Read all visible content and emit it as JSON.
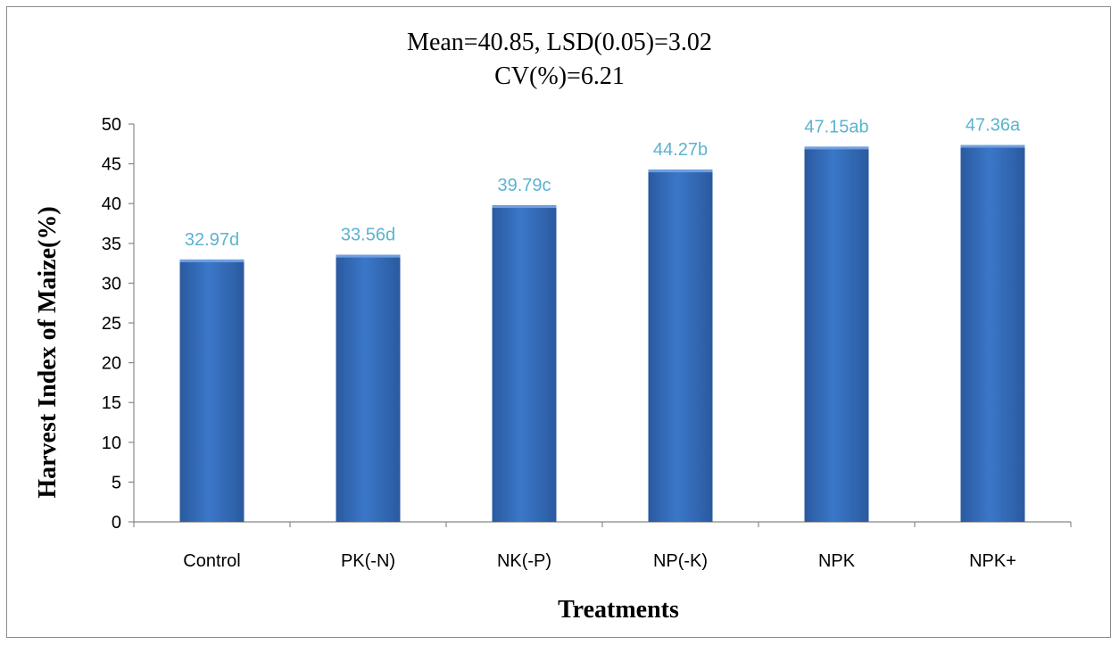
{
  "chart_data": {
    "type": "bar",
    "title": "Mean=40.85, LSD(0.05)=3.02",
    "subtitle": "CV(%)=6.21",
    "xlabel": "Treatments",
    "ylabel": "Harvest Index of Maize(%)",
    "categories": [
      "Control",
      "PK(-N)",
      "NK(-P)",
      "NP(-K)",
      "NPK",
      "NPK+"
    ],
    "values": [
      32.97,
      33.56,
      39.79,
      44.27,
      47.15,
      47.36
    ],
    "data_labels": [
      "32.97d",
      "33.56d",
      "39.79c",
      "44.27b",
      "47.15ab",
      "47.36a"
    ],
    "yticks": [
      "0",
      "5",
      "10",
      "15",
      "20",
      "25",
      "30",
      "35",
      "40",
      "45",
      "50"
    ],
    "ylim": [
      0,
      50
    ],
    "grid": false,
    "legend": "none",
    "colors": {
      "bar": "#3b77c8",
      "bar_dark": "#2a5aa0",
      "data_label": "#5bb3cf",
      "axis": "#888888"
    }
  }
}
